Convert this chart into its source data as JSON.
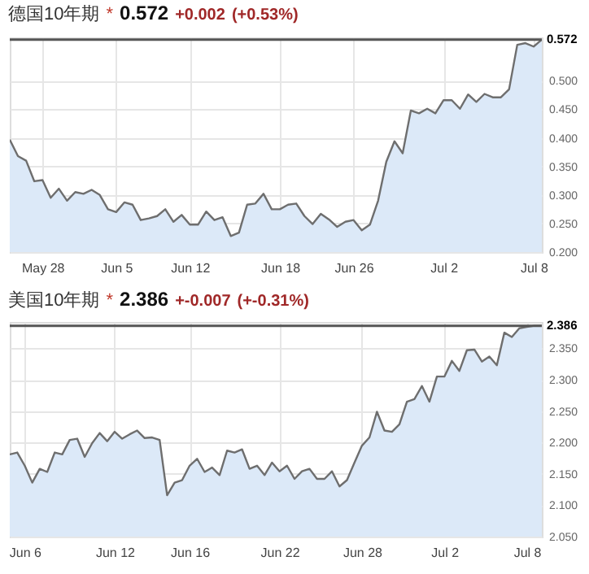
{
  "chart_data": [
    {
      "type": "area",
      "title": "德国10年期",
      "annotations": [
        "*",
        "0.572",
        "+0.002",
        "(+0.53%)"
      ],
      "categories": [
        null,
        null,
        null,
        null,
        "May 28",
        null,
        null,
        null,
        null,
        null,
        null,
        null,
        null,
        "Jun 5",
        null,
        null,
        null,
        null,
        null,
        null,
        null,
        null,
        "Jun 12",
        null,
        null,
        null,
        null,
        null,
        null,
        null,
        null,
        null,
        null,
        "Jun 18",
        null,
        null,
        null,
        null,
        null,
        null,
        null,
        null,
        "Jun 26",
        null,
        null,
        null,
        null,
        null,
        null,
        null,
        null,
        null,
        null,
        "Jul 2",
        null,
        null,
        null,
        null,
        null,
        null,
        null,
        null,
        null,
        null,
        "Jul 8",
        null
      ],
      "series": [
        {
          "color": "#6e6e6e",
          "values": [
            0.397,
            0.368,
            0.36,
            0.324,
            0.326,
            0.295,
            0.311,
            0.29,
            0.305,
            0.302,
            0.309,
            0.3,
            0.275,
            0.27,
            0.287,
            0.283,
            0.256,
            0.259,
            0.263,
            0.275,
            0.253,
            0.265,
            0.248,
            0.248,
            0.271,
            0.256,
            0.261,
            0.228,
            0.234,
            0.283,
            0.285,
            0.302,
            0.275,
            0.275,
            0.283,
            0.285,
            0.263,
            0.249,
            0.267,
            0.257,
            0.244,
            0.253,
            0.256,
            0.238,
            0.248,
            0.29,
            0.358,
            0.394,
            0.373,
            0.448,
            0.443,
            0.451,
            0.443,
            0.466,
            0.466,
            0.451,
            0.476,
            0.463,
            0.477,
            0.471,
            0.471,
            0.485,
            0.563,
            0.566,
            0.56,
            0.572
          ]
        }
      ],
      "ylim": [
        0.2,
        0.576
      ],
      "yticks": [
        {
          "value": 0.2,
          "label": "0.200"
        },
        {
          "value": 0.25,
          "label": "0.250"
        },
        {
          "value": 0.3,
          "label": "0.300"
        },
        {
          "value": 0.35,
          "label": "0.350"
        },
        {
          "value": 0.4,
          "label": "0.400"
        },
        {
          "value": 0.45,
          "label": "0.450"
        },
        {
          "value": 0.5,
          "label": "0.500"
        }
      ],
      "ref_lines": [
        {
          "axis": "y",
          "value": 0.572,
          "label": "0.572",
          "color": "#555555"
        }
      ],
      "grid": true
    },
    {
      "type": "area",
      "title": "美国10年期",
      "annotations": [
        "*",
        "2.386",
        "+-0.007",
        "(+-0.31%)"
      ],
      "categories": [
        null,
        null,
        "Jun 6",
        null,
        null,
        null,
        null,
        null,
        null,
        null,
        null,
        null,
        null,
        null,
        "Jun 12",
        null,
        null,
        null,
        null,
        null,
        null,
        null,
        null,
        null,
        "Jun 16",
        null,
        null,
        null,
        null,
        null,
        null,
        null,
        null,
        null,
        null,
        null,
        "Jun 22",
        null,
        null,
        null,
        null,
        null,
        null,
        null,
        null,
        null,
        null,
        "Jun 28",
        null,
        null,
        null,
        null,
        null,
        null,
        null,
        null,
        null,
        null,
        "Jul 2",
        null,
        null,
        null,
        null,
        null,
        null,
        null,
        null,
        null,
        null,
        "Jul 8",
        null,
        null
      ],
      "series": [
        {
          "color": "#6e6e6e",
          "values": [
            2.181,
            2.184,
            2.163,
            2.136,
            2.158,
            2.153,
            2.184,
            2.181,
            2.204,
            2.206,
            2.177,
            2.199,
            2.215,
            2.202,
            2.217,
            2.206,
            2.213,
            2.219,
            2.207,
            2.208,
            2.204,
            2.116,
            2.136,
            2.14,
            2.163,
            2.174,
            2.153,
            2.16,
            2.148,
            2.187,
            2.184,
            2.189,
            2.158,
            2.163,
            2.148,
            2.168,
            2.154,
            2.163,
            2.142,
            2.154,
            2.158,
            2.142,
            2.142,
            2.154,
            2.13,
            2.14,
            2.168,
            2.195,
            2.208,
            2.249,
            2.219,
            2.217,
            2.229,
            2.265,
            2.269,
            2.29,
            2.265,
            2.305,
            2.305,
            2.33,
            2.314,
            2.347,
            2.348,
            2.329,
            2.337,
            2.323,
            2.375,
            2.368,
            2.382,
            2.384,
            2.386,
            2.386
          ]
        }
      ],
      "ylim": [
        2.05,
        2.392
      ],
      "yticks": [
        {
          "value": 2.05,
          "label": "2.050"
        },
        {
          "value": 2.1,
          "label": "2.100"
        },
        {
          "value": 2.15,
          "label": "2.150"
        },
        {
          "value": 2.2,
          "label": "2.200"
        },
        {
          "value": 2.25,
          "label": "2.250"
        },
        {
          "value": 2.3,
          "label": "2.300"
        },
        {
          "value": 2.35,
          "label": "2.350"
        }
      ],
      "ref_lines": [
        {
          "axis": "y",
          "value": 2.386,
          "label": "2.386",
          "color": "#555555"
        }
      ],
      "grid": true
    }
  ]
}
